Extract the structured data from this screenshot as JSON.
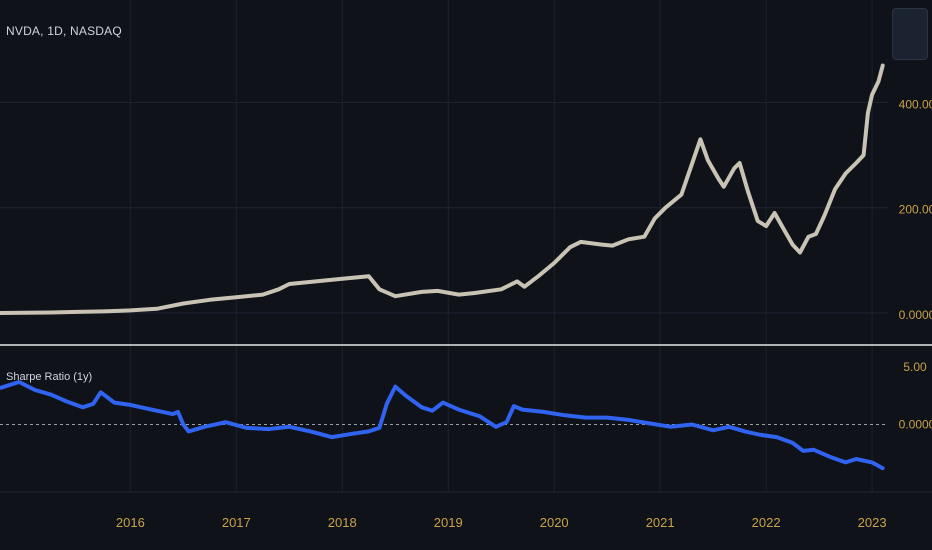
{
  "symbol": "NVDA, 1D, NASDAQ",
  "indicator_label": "Sharpe Ratio (1y)",
  "colors": {
    "background": "#0f1218",
    "grid": "#1c2230",
    "price_line": "#c8c3b4",
    "indicator_line": "#2f63f0",
    "axis_text": "#c9a24a",
    "separator": "#e6e6e6",
    "zero_line": "#9aa0a6"
  },
  "chart_data": [
    {
      "type": "line",
      "title": "",
      "series": [
        {
          "values": [
            [
              2015.25,
              0
            ],
            [
              2015.5,
              0.4
            ],
            [
              2015.75,
              1
            ],
            [
              2016.0,
              2
            ],
            [
              2016.25,
              3
            ],
            [
              2016.5,
              5
            ],
            [
              2016.75,
              8
            ],
            [
              2017.0,
              18
            ],
            [
              2017.25,
              25
            ],
            [
              2017.5,
              30
            ],
            [
              2017.75,
              35
            ],
            [
              2017.9,
              45
            ],
            [
              2018.0,
              55
            ],
            [
              2018.25,
              60
            ],
            [
              2018.5,
              65
            ],
            [
              2018.75,
              70
            ],
            [
              2018.85,
              45
            ],
            [
              2019.0,
              32
            ],
            [
              2019.25,
              40
            ],
            [
              2019.4,
              42
            ],
            [
              2019.6,
              35
            ],
            [
              2019.75,
              38
            ],
            [
              2020.0,
              45
            ],
            [
              2020.15,
              60
            ],
            [
              2020.22,
              50
            ],
            [
              2020.35,
              70
            ],
            [
              2020.5,
              95
            ],
            [
              2020.65,
              125
            ],
            [
              2020.75,
              135
            ],
            [
              2020.95,
              130
            ],
            [
              2021.05,
              128
            ],
            [
              2021.2,
              140
            ],
            [
              2021.35,
              145
            ],
            [
              2021.45,
              180
            ],
            [
              2021.55,
              200
            ],
            [
              2021.7,
              225
            ],
            [
              2021.82,
              295
            ],
            [
              2021.88,
              330
            ],
            [
              2021.95,
              290
            ],
            [
              2022.05,
              255
            ],
            [
              2022.1,
              240
            ],
            [
              2022.2,
              275
            ],
            [
              2022.25,
              285
            ],
            [
              2022.33,
              230
            ],
            [
              2022.42,
              175
            ],
            [
              2022.5,
              165
            ],
            [
              2022.58,
              190
            ],
            [
              2022.65,
              165
            ],
            [
              2022.75,
              130
            ],
            [
              2022.82,
              115
            ],
            [
              2022.9,
              145
            ],
            [
              2022.97,
              150
            ],
            [
              2023.05,
              185
            ],
            [
              2023.15,
              235
            ],
            [
              2023.25,
              265
            ],
            [
              2023.35,
              285
            ],
            [
              2023.42,
              300
            ],
            [
              2023.46,
              380
            ],
            [
              2023.5,
              415
            ],
            [
              2023.56,
              440
            ],
            [
              2023.6,
              470
            ]
          ]
        }
      ],
      "y_ticks": [
        "400.00",
        "200.00",
        "0.0000"
      ],
      "ylim": [
        -20,
        500
      ],
      "xlim": [
        2015.27,
        2023.65
      ]
    },
    {
      "type": "line",
      "title": "",
      "series": [
        {
          "values": [
            [
              2015.28,
              3.2
            ],
            [
              2015.45,
              3.7
            ],
            [
              2015.6,
              3.0
            ],
            [
              2015.75,
              2.6
            ],
            [
              2015.9,
              2.0
            ],
            [
              2016.05,
              1.5
            ],
            [
              2016.15,
              1.8
            ],
            [
              2016.22,
              2.8
            ],
            [
              2016.35,
              1.9
            ],
            [
              2016.5,
              1.7
            ],
            [
              2016.7,
              1.3
            ],
            [
              2016.9,
              0.9
            ],
            [
              2016.95,
              1.1
            ],
            [
              2017.0,
              0.0
            ],
            [
              2017.05,
              -0.6
            ],
            [
              2017.2,
              -0.2
            ],
            [
              2017.4,
              0.2
            ],
            [
              2017.6,
              -0.3
            ],
            [
              2017.8,
              -0.4
            ],
            [
              2018.0,
              -0.2
            ],
            [
              2018.2,
              -0.6
            ],
            [
              2018.4,
              -1.1
            ],
            [
              2018.6,
              -0.8
            ],
            [
              2018.75,
              -0.6
            ],
            [
              2018.85,
              -0.3
            ],
            [
              2018.92,
              1.8
            ],
            [
              2019.0,
              3.3
            ],
            [
              2019.1,
              2.5
            ],
            [
              2019.25,
              1.5
            ],
            [
              2019.35,
              1.2
            ],
            [
              2019.45,
              1.9
            ],
            [
              2019.6,
              1.3
            ],
            [
              2019.8,
              0.7
            ],
            [
              2019.95,
              -0.2
            ],
            [
              2020.05,
              0.2
            ],
            [
              2020.12,
              1.6
            ],
            [
              2020.2,
              1.3
            ],
            [
              2020.4,
              1.1
            ],
            [
              2020.6,
              0.8
            ],
            [
              2020.8,
              0.6
            ],
            [
              2021.0,
              0.6
            ],
            [
              2021.2,
              0.4
            ],
            [
              2021.4,
              0.1
            ],
            [
              2021.6,
              -0.2
            ],
            [
              2021.8,
              0.0
            ],
            [
              2022.0,
              -0.5
            ],
            [
              2022.15,
              -0.2
            ],
            [
              2022.3,
              -0.6
            ],
            [
              2022.45,
              -0.9
            ],
            [
              2022.6,
              -1.1
            ],
            [
              2022.75,
              -1.6
            ],
            [
              2022.85,
              -2.3
            ],
            [
              2022.95,
              -2.2
            ],
            [
              2023.1,
              -2.8
            ],
            [
              2023.25,
              -3.3
            ],
            [
              2023.35,
              -3.0
            ],
            [
              2023.5,
              -3.3
            ],
            [
              2023.6,
              -3.8
            ]
          ]
        }
      ],
      "y_ticks": [
        "5.00",
        "0.0000"
      ],
      "ylim": [
        -5,
        5
      ],
      "xlim": [
        2015.27,
        2023.65
      ]
    }
  ],
  "x_axis": {
    "tick_labels": [
      "2016",
      "2017",
      "2018",
      "2019",
      "2020",
      "2021",
      "2022",
      "2023"
    ],
    "tick_years": [
      2016,
      2017,
      2018,
      2019,
      2020,
      2021,
      2022,
      2023
    ]
  }
}
